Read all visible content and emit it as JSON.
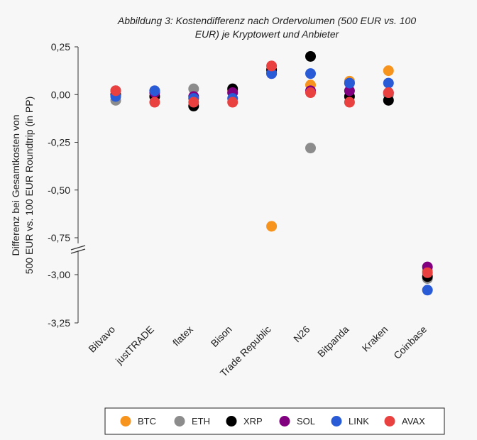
{
  "chart_data": {
    "type": "scatter",
    "title_lines": [
      "Abbildung 3: Kostendifferenz nach Ordervolumen (500 EUR vs. 100",
      "EUR) je Kryptowert und Anbieter"
    ],
    "ylabel_lines": [
      "Differenz bei Gesamtkosten von",
      "500 EUR vs. 100 EUR Roundtrip (in PP)"
    ],
    "xlabel": "",
    "categories": [
      "Bitvavo",
      "justTRADE",
      "flatex",
      "Bison",
      "Trade Republic",
      "N26",
      "Bitpanda",
      "Kraken",
      "Coinbase"
    ],
    "y_ticks": [
      "0,25",
      "0,00",
      "-0,25",
      "-0,50",
      "-0,75",
      "-3,00",
      "-3,25"
    ],
    "y_axis_break": {
      "upper_segment": [
        -0.75,
        0.25
      ],
      "lower_segment": [
        -3.25,
        -2.8
      ]
    },
    "legend_position": "bottom",
    "series": [
      {
        "name": "BTC",
        "color": "#f7941d",
        "values": [
          0.02,
          -0.01,
          -0.02,
          0.02,
          -0.69,
          0.05,
          0.07,
          0.125,
          -2.98
        ]
      },
      {
        "name": "ETH",
        "color": "#8c8c8c",
        "values": [
          -0.03,
          0.02,
          0.03,
          0.01,
          0.12,
          -0.28,
          0.06,
          0.0,
          -3.02
        ]
      },
      {
        "name": "XRP",
        "color": "#000000",
        "values": [
          0.0,
          -0.01,
          -0.06,
          0.03,
          0.13,
          0.2,
          -0.01,
          -0.03,
          -3.01
        ]
      },
      {
        "name": "SOL",
        "color": "#800080",
        "values": [
          0.02,
          0.01,
          -0.01,
          0.01,
          0.11,
          0.02,
          0.02,
          0.01,
          -2.96
        ]
      },
      {
        "name": "LINK",
        "color": "#2a5bd7",
        "values": [
          -0.01,
          0.02,
          -0.02,
          -0.02,
          0.11,
          0.11,
          0.06,
          0.06,
          -3.08
        ]
      },
      {
        "name": "AVAX",
        "color": "#e8413f",
        "values": [
          0.02,
          -0.04,
          -0.04,
          -0.04,
          0.15,
          0.01,
          -0.04,
          0.01,
          -2.99
        ]
      }
    ]
  }
}
